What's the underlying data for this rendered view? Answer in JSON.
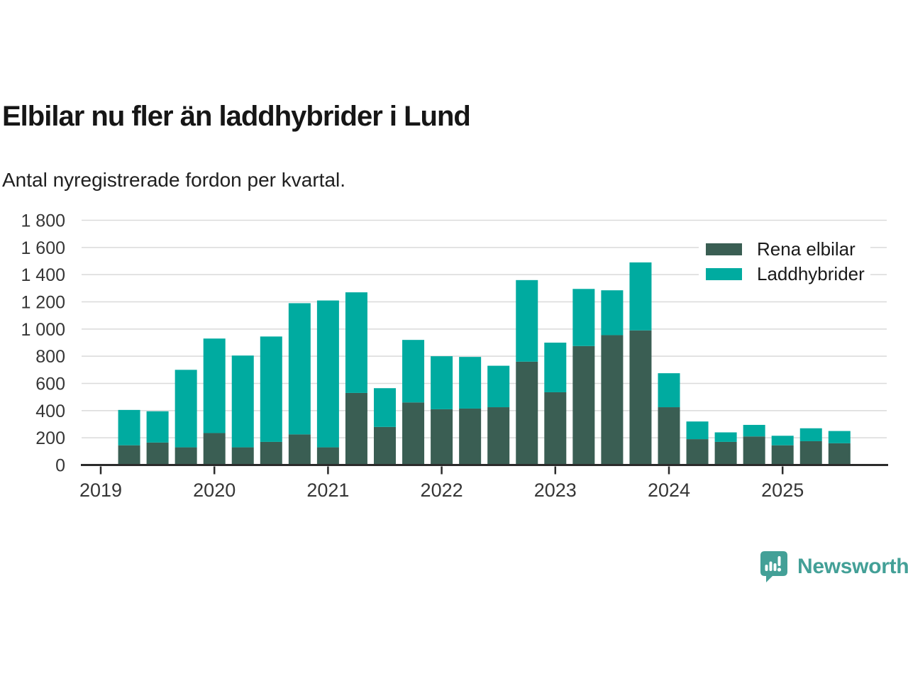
{
  "header": {
    "title": "Elbilar nu fler än laddhybrider i Lund",
    "subtitle": "Antal nyregistrerade fordon per kvartal."
  },
  "legend": {
    "items": [
      {
        "label": "Rena elbilar",
        "color": "#3A5E53"
      },
      {
        "label": "Laddhybrider",
        "color": "#00ABA0"
      }
    ]
  },
  "footer": {
    "brand": "Newsworthy",
    "brand_color": "#43A097"
  },
  "chart_data": {
    "type": "bar",
    "stacked": true,
    "title": "Elbilar nu fler än laddhybrider i Lund",
    "subtitle": "Antal nyregistrerade fordon per kvartal.",
    "x": [
      "2019 Q2",
      "2019 Q3",
      "2019 Q4",
      "2020 Q1",
      "2020 Q2",
      "2020 Q3",
      "2020 Q4",
      "2021 Q1",
      "2021 Q2",
      "2021 Q3",
      "2021 Q4",
      "2022 Q1",
      "2022 Q2",
      "2022 Q3",
      "2022 Q4",
      "2023 Q1",
      "2023 Q2",
      "2023 Q3",
      "2023 Q4",
      "2024 Q1",
      "2024 Q2",
      "2024 Q3",
      "2024 Q4",
      "2025 Q1",
      "2025 Q2",
      "2025 Q3"
    ],
    "series": [
      {
        "name": "Rena elbilar",
        "color": "#3A5E53",
        "values": [
          145,
          165,
          130,
          235,
          130,
          170,
          225,
          130,
          530,
          280,
          460,
          410,
          415,
          425,
          760,
          535,
          875,
          955,
          990,
          425,
          190,
          170,
          210,
          145,
          175,
          160
        ]
      },
      {
        "name": "Laddhybrider",
        "color": "#00ABA0",
        "values": [
          260,
          230,
          570,
          695,
          675,
          775,
          965,
          1080,
          740,
          285,
          460,
          390,
          380,
          305,
          600,
          365,
          420,
          330,
          500,
          250,
          130,
          70,
          85,
          70,
          95,
          90
        ]
      }
    ],
    "ylim": [
      0,
      1800
    ],
    "yticks": [
      0,
      200,
      400,
      600,
      800,
      1000,
      1200,
      1400,
      1600,
      1800
    ],
    "ytick_labels": [
      "0",
      "200",
      "400",
      "600",
      "800",
      "1 000",
      "1 200",
      "1 400",
      "1 600",
      "1 800"
    ],
    "xtick_labels": [
      "2019",
      "2020",
      "2021",
      "2022",
      "2023",
      "2024",
      "2025"
    ],
    "grid": "horizontal-major",
    "gridline_color": "#dadada",
    "axis_color": "#2b2b2b",
    "tick_label_color": "#363636",
    "legend_position": "top-right"
  }
}
